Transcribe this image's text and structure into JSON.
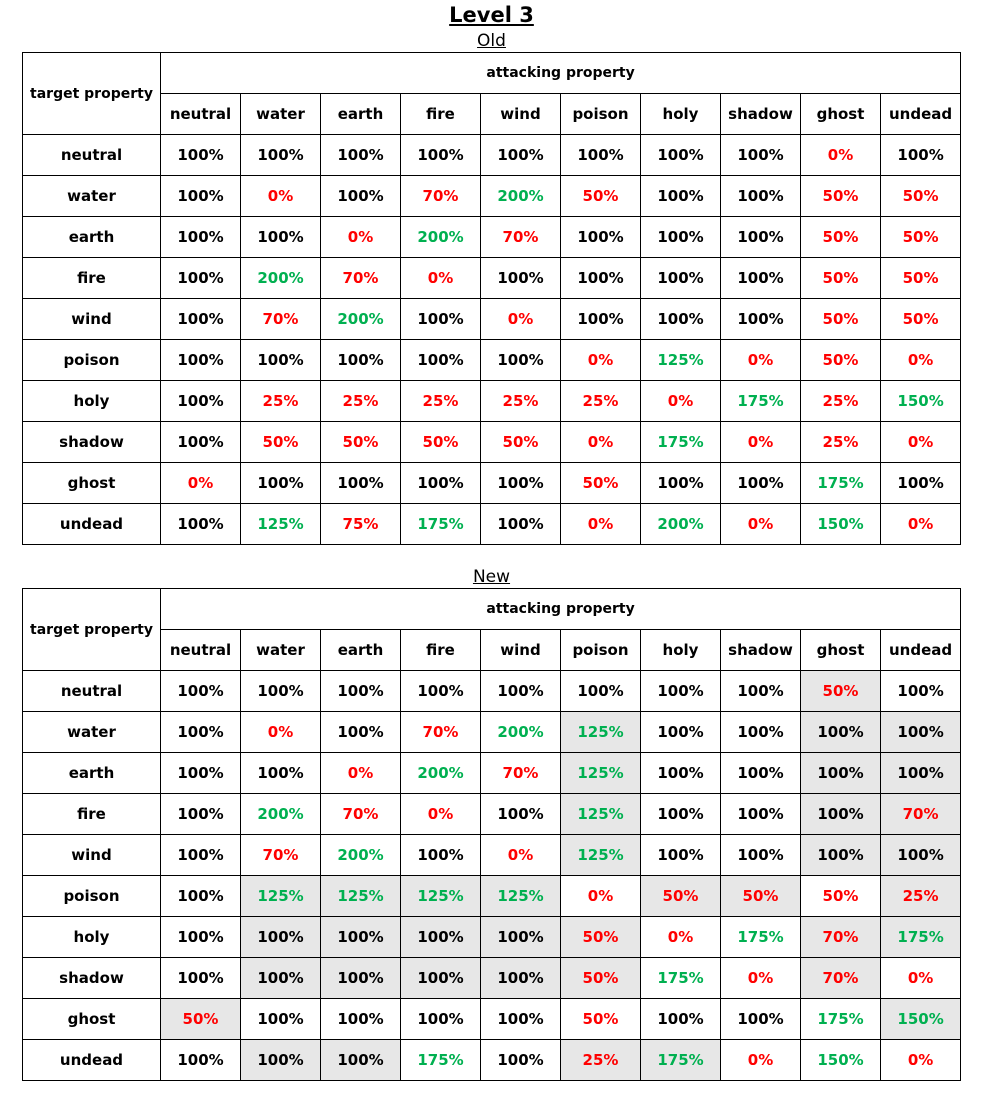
{
  "title": "Level 3",
  "colors": {
    "decrease": "#ff0000",
    "increase": "#00b050",
    "changed_highlight": "#e7e7e7"
  },
  "tables": [
    {
      "id": "old",
      "label": "Old",
      "corner_label": "target property",
      "header_label": "attacking property",
      "columns": [
        "neutral",
        "water",
        "earth",
        "fire",
        "wind",
        "poison",
        "holy",
        "shadow",
        "ghost",
        "undead"
      ],
      "rows": [
        {
          "name": "neutral",
          "values": [
            "100%",
            "100%",
            "100%",
            "100%",
            "100%",
            "100%",
            "100%",
            "100%",
            "0%",
            "100%"
          ],
          "changed": []
        },
        {
          "name": "water",
          "values": [
            "100%",
            "0%",
            "100%",
            "70%",
            "200%",
            "50%",
            "100%",
            "100%",
            "50%",
            "50%"
          ],
          "changed": []
        },
        {
          "name": "earth",
          "values": [
            "100%",
            "100%",
            "0%",
            "200%",
            "70%",
            "100%",
            "100%",
            "100%",
            "50%",
            "50%"
          ],
          "changed": []
        },
        {
          "name": "fire",
          "values": [
            "100%",
            "200%",
            "70%",
            "0%",
            "100%",
            "100%",
            "100%",
            "100%",
            "50%",
            "50%"
          ],
          "changed": []
        },
        {
          "name": "wind",
          "values": [
            "100%",
            "70%",
            "200%",
            "100%",
            "0%",
            "100%",
            "100%",
            "100%",
            "50%",
            "50%"
          ],
          "changed": []
        },
        {
          "name": "poison",
          "values": [
            "100%",
            "100%",
            "100%",
            "100%",
            "100%",
            "0%",
            "125%",
            "0%",
            "50%",
            "0%"
          ],
          "changed": []
        },
        {
          "name": "holy",
          "values": [
            "100%",
            "25%",
            "25%",
            "25%",
            "25%",
            "25%",
            "0%",
            "175%",
            "25%",
            "150%"
          ],
          "changed": []
        },
        {
          "name": "shadow",
          "values": [
            "100%",
            "50%",
            "50%",
            "50%",
            "50%",
            "0%",
            "175%",
            "0%",
            "25%",
            "0%"
          ],
          "changed": []
        },
        {
          "name": "ghost",
          "values": [
            "0%",
            "100%",
            "100%",
            "100%",
            "100%",
            "50%",
            "100%",
            "100%",
            "175%",
            "100%"
          ],
          "changed": []
        },
        {
          "name": "undead",
          "values": [
            "100%",
            "125%",
            "75%",
            "175%",
            "100%",
            "0%",
            "200%",
            "0%",
            "150%",
            "0%"
          ],
          "changed": []
        }
      ]
    },
    {
      "id": "new",
      "label": "New",
      "corner_label": "target property",
      "header_label": "attacking property",
      "columns": [
        "neutral",
        "water",
        "earth",
        "fire",
        "wind",
        "poison",
        "holy",
        "shadow",
        "ghost",
        "undead"
      ],
      "rows": [
        {
          "name": "neutral",
          "values": [
            "100%",
            "100%",
            "100%",
            "100%",
            "100%",
            "100%",
            "100%",
            "100%",
            "50%",
            "100%"
          ],
          "changed": [
            8
          ]
        },
        {
          "name": "water",
          "values": [
            "100%",
            "0%",
            "100%",
            "70%",
            "200%",
            "125%",
            "100%",
            "100%",
            "100%",
            "100%"
          ],
          "changed": [
            5,
            8,
            9
          ]
        },
        {
          "name": "earth",
          "values": [
            "100%",
            "100%",
            "0%",
            "200%",
            "70%",
            "125%",
            "100%",
            "100%",
            "100%",
            "100%"
          ],
          "changed": [
            5,
            8,
            9
          ]
        },
        {
          "name": "fire",
          "values": [
            "100%",
            "200%",
            "70%",
            "0%",
            "100%",
            "125%",
            "100%",
            "100%",
            "100%",
            "70%"
          ],
          "changed": [
            5,
            8,
            9
          ]
        },
        {
          "name": "wind",
          "values": [
            "100%",
            "70%",
            "200%",
            "100%",
            "0%",
            "125%",
            "100%",
            "100%",
            "100%",
            "100%"
          ],
          "changed": [
            5,
            8,
            9
          ]
        },
        {
          "name": "poison",
          "values": [
            "100%",
            "125%",
            "125%",
            "125%",
            "125%",
            "0%",
            "50%",
            "50%",
            "50%",
            "25%"
          ],
          "changed": [
            1,
            2,
            3,
            4,
            6,
            7,
            9
          ]
        },
        {
          "name": "holy",
          "values": [
            "100%",
            "100%",
            "100%",
            "100%",
            "100%",
            "50%",
            "0%",
            "175%",
            "70%",
            "175%"
          ],
          "changed": [
            1,
            2,
            3,
            4,
            5,
            8,
            9
          ]
        },
        {
          "name": "shadow",
          "values": [
            "100%",
            "100%",
            "100%",
            "100%",
            "100%",
            "50%",
            "175%",
            "0%",
            "70%",
            "0%"
          ],
          "changed": [
            1,
            2,
            3,
            4,
            5,
            8
          ]
        },
        {
          "name": "ghost",
          "values": [
            "50%",
            "100%",
            "100%",
            "100%",
            "100%",
            "50%",
            "100%",
            "100%",
            "175%",
            "150%"
          ],
          "changed": [
            0,
            9
          ]
        },
        {
          "name": "undead",
          "values": [
            "100%",
            "100%",
            "100%",
            "175%",
            "100%",
            "25%",
            "175%",
            "0%",
            "150%",
            "0%"
          ],
          "changed": [
            1,
            2,
            5,
            6
          ]
        }
      ]
    }
  ]
}
